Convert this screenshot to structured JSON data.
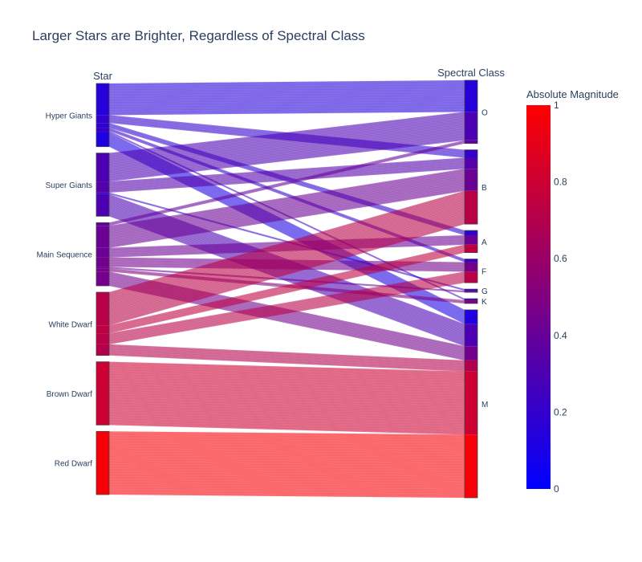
{
  "chart_data": {
    "type": "parallel_categories",
    "title": "Larger Stars are Brighter, Regardless of Spectral Class",
    "dimensions": [
      {
        "label": "Star",
        "categories": [
          "Hyper Giants",
          "Super Giants",
          "Main Sequence",
          "White Dwarf",
          "Brown Dwarf",
          "Red Dwarf"
        ]
      },
      {
        "label": "Spectral Class",
        "categories": [
          "O",
          "B",
          "A",
          "F",
          "G",
          "K",
          "M"
        ]
      }
    ],
    "flows": [
      {
        "star": "Hyper Giants",
        "spectral": "O",
        "count": 20,
        "magnitude": 0.15
      },
      {
        "star": "Hyper Giants",
        "spectral": "B",
        "count": 5,
        "magnitude": 0.2
      },
      {
        "star": "Hyper Giants",
        "spectral": "A",
        "count": 3,
        "magnitude": 0.18
      },
      {
        "star": "Hyper Giants",
        "spectral": "F",
        "count": 2,
        "magnitude": 0.2
      },
      {
        "star": "Hyper Giants",
        "spectral": "K",
        "count": 1,
        "magnitude": 0.25
      },
      {
        "star": "Hyper Giants",
        "spectral": "M",
        "count": 9,
        "magnitude": 0.12
      },
      {
        "star": "Super Giants",
        "spectral": "O",
        "count": 18,
        "magnitude": 0.3
      },
      {
        "star": "Super Giants",
        "spectral": "B",
        "count": 7,
        "magnitude": 0.33
      },
      {
        "star": "Super Giants",
        "spectral": "G",
        "count": 1,
        "magnitude": 0.2
      },
      {
        "star": "Super Giants",
        "spectral": "M",
        "count": 14,
        "magnitude": 0.3
      },
      {
        "star": "Main Sequence",
        "spectral": "O",
        "count": 2,
        "magnitude": 0.4
      },
      {
        "star": "Main Sequence",
        "spectral": "B",
        "count": 14,
        "magnitude": 0.42
      },
      {
        "star": "Main Sequence",
        "spectral": "A",
        "count": 6,
        "magnitude": 0.42
      },
      {
        "star": "Main Sequence",
        "spectral": "F",
        "count": 6,
        "magnitude": 0.45
      },
      {
        "star": "Main Sequence",
        "spectral": "G",
        "count": 1,
        "magnitude": 0.4
      },
      {
        "star": "Main Sequence",
        "spectral": "K",
        "count": 2,
        "magnitude": 0.5
      },
      {
        "star": "Main Sequence",
        "spectral": "M",
        "count": 9,
        "magnitude": 0.45
      },
      {
        "star": "White Dwarf",
        "spectral": "B",
        "count": 21,
        "magnitude": 0.72
      },
      {
        "star": "White Dwarf",
        "spectral": "A",
        "count": 5,
        "magnitude": 0.75
      },
      {
        "star": "White Dwarf",
        "spectral": "F",
        "count": 7,
        "magnitude": 0.72
      },
      {
        "star": "White Dwarf",
        "spectral": "M",
        "count": 7,
        "magnitude": 0.7
      },
      {
        "star": "Brown Dwarf",
        "spectral": "M",
        "count": 40,
        "magnitude": 0.8
      },
      {
        "star": "Red Dwarf",
        "spectral": "M",
        "count": 40,
        "magnitude": 0.97
      }
    ],
    "colorbar": {
      "title": "Absolute Magnitude",
      "min": 0,
      "max": 1,
      "ticks": [
        "0",
        "0.2",
        "0.4",
        "0.6",
        "0.8",
        "1"
      ],
      "colorscale": [
        "#0000ff",
        "#ff0000"
      ]
    }
  }
}
